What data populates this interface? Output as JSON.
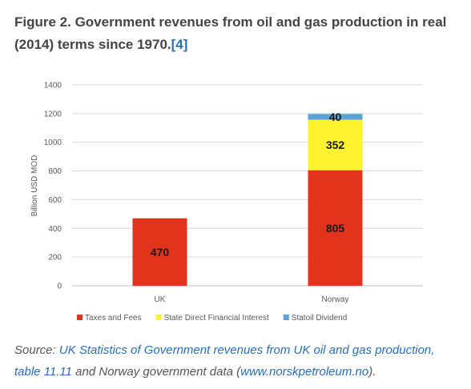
{
  "figure": {
    "title": "Figure 2. Government revenues from oil and gas production in real (2014) terms since 1970.",
    "ref": "[4]"
  },
  "source": {
    "prefix": "Source: ",
    "link1": "UK Statistics of Government revenues from UK oil and gas production, table 11.11",
    "mid": " and Norway government data (",
    "link2": "www.norskpetroleum.no",
    "suffix": ")."
  },
  "chart_data": {
    "type": "bar",
    "stacked": true,
    "categories": [
      "UK",
      "Norway"
    ],
    "series": [
      {
        "name": "Taxes and Fees",
        "values": [
          470,
          805
        ],
        "color": "#e2341d"
      },
      {
        "name": "State Direct Financial Interest",
        "values": [
          null,
          352
        ],
        "color": "#fff22f"
      },
      {
        "name": "Statoil Dividend",
        "values": [
          null,
          40
        ],
        "color": "#5aa2d9"
      }
    ],
    "data_labels": [
      [
        "470",
        "805"
      ],
      [
        "",
        "352"
      ],
      [
        "",
        "40"
      ]
    ],
    "ylabel": "Billion USD MOD",
    "ylim": [
      0,
      1400
    ],
    "yticks": [
      0,
      200,
      400,
      600,
      800,
      1000,
      1200,
      1400
    ],
    "grid": true,
    "legend_position": "bottom"
  }
}
